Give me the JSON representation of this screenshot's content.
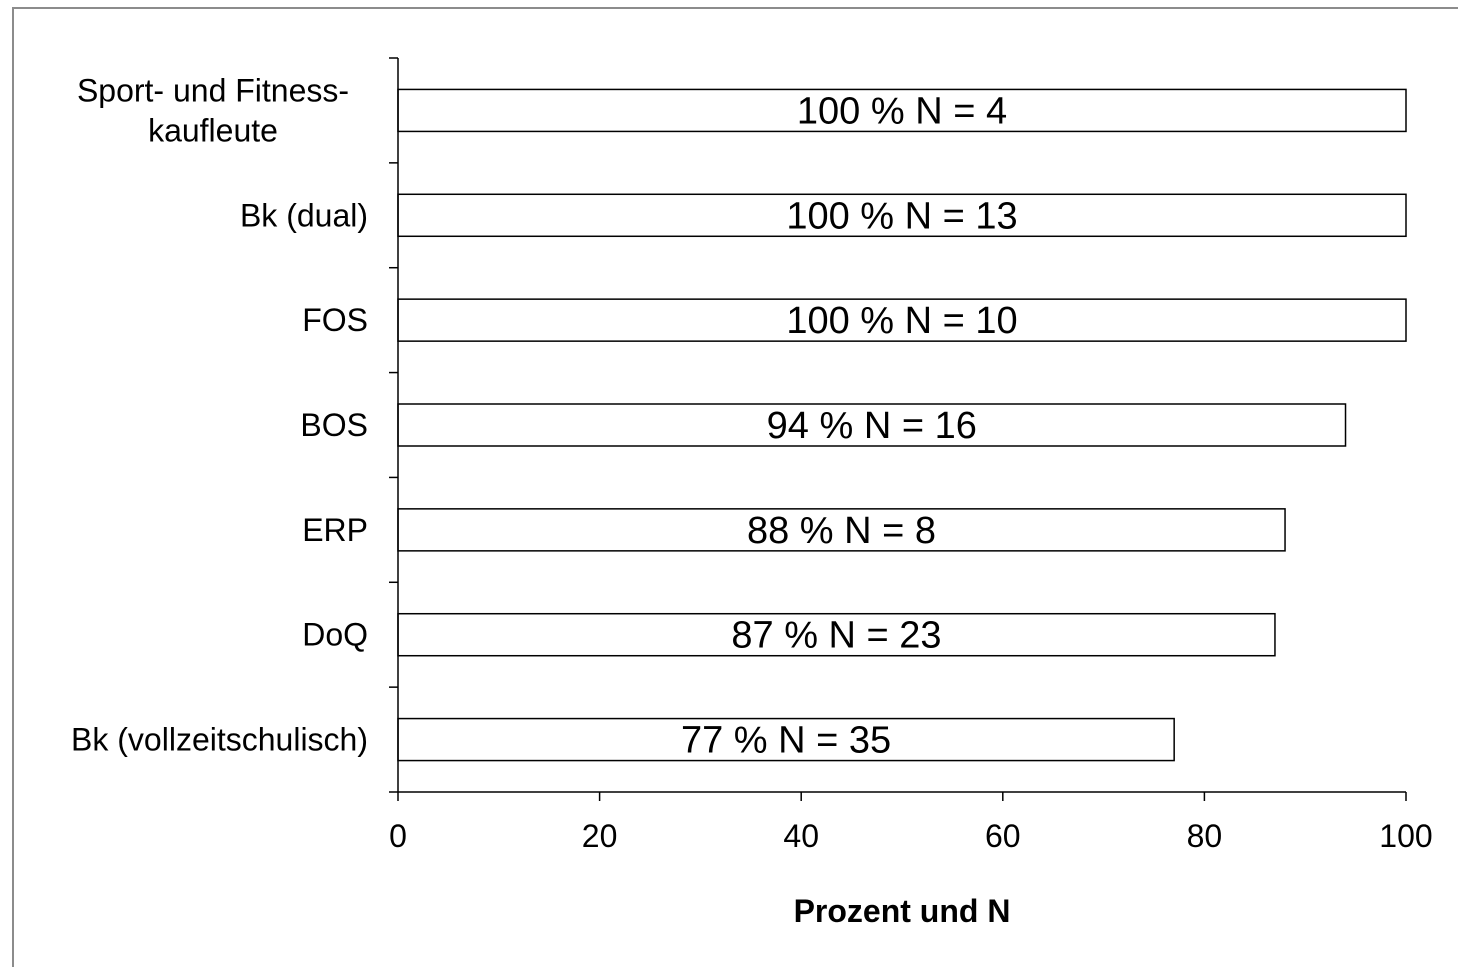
{
  "chart_data": {
    "type": "bar",
    "orientation": "horizontal",
    "categories": [
      "Sport- und Fitness-\nkaufleute",
      "Bk (dual)",
      "FOS",
      "BOS",
      "ERP",
      "DoQ",
      "Bk (vollzeitschulisch)"
    ],
    "values": [
      100,
      100,
      100,
      94,
      88,
      87,
      77
    ],
    "bar_labels": [
      "100 %  N = 4",
      "100 %  N = 13",
      "100 %  N = 10",
      "94 %  N = 16",
      "88 %  N = 8",
      "87 %  N = 23",
      "77 %  N = 35"
    ],
    "xlabel": "Prozent und N",
    "xlim": [
      0,
      100
    ],
    "xticks": [
      "0",
      "20",
      "40",
      "60",
      "80",
      "100"
    ],
    "grid": false,
    "legend": "none",
    "bar_fill": "#ffffff",
    "bar_stroke": "#000000",
    "frame_color": "#8c8c8c"
  }
}
